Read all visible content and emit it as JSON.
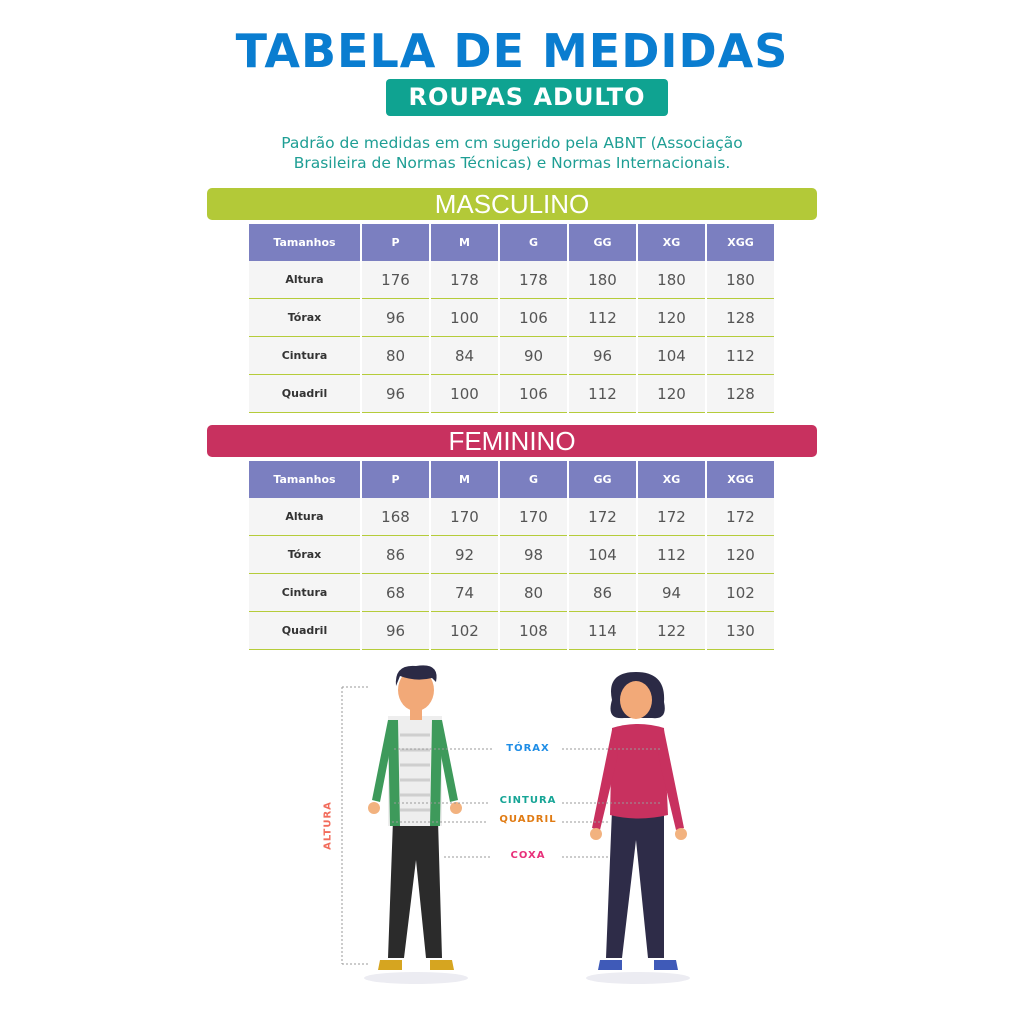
{
  "title": "TABELA DE MEDIDAS",
  "subtitle": "ROUPAS ADULTO",
  "description": [
    "Padrão de medidas em cm sugerido pela ABNT (Associação",
    "Brasileira de Normas Técnicas) e Normas Internacionais."
  ],
  "colors": {
    "title": "#0a7dd0",
    "subtitle_bg": "#0fa391",
    "masculino": "#b3c938",
    "feminino": "#c8315f",
    "table_header": "#7b7fc0"
  },
  "masculino": {
    "label": "MASCULINO",
    "headers": [
      "Tamanhos",
      "P",
      "M",
      "G",
      "GG",
      "XG",
      "XGG"
    ],
    "rows": [
      {
        "label": "Altura",
        "values": [
          "176",
          "178",
          "178",
          "180",
          "180",
          "180"
        ]
      },
      {
        "label": "Tórax",
        "values": [
          "96",
          "100",
          "106",
          "112",
          "120",
          "128"
        ]
      },
      {
        "label": "Cintura",
        "values": [
          "80",
          "84",
          "90",
          "96",
          "104",
          "112"
        ]
      },
      {
        "label": "Quadril",
        "values": [
          "96",
          "100",
          "106",
          "112",
          "120",
          "128"
        ]
      }
    ]
  },
  "feminino": {
    "label": "FEMININO",
    "headers": [
      "Tamanhos",
      "P",
      "M",
      "G",
      "GG",
      "XG",
      "XGG"
    ],
    "rows": [
      {
        "label": "Altura",
        "values": [
          "168",
          "170",
          "170",
          "172",
          "172",
          "172"
        ]
      },
      {
        "label": "Tórax",
        "values": [
          "86",
          "92",
          "98",
          "104",
          "112",
          "120"
        ]
      },
      {
        "label": "Cintura",
        "values": [
          "68",
          "74",
          "80",
          "86",
          "94",
          "102"
        ]
      },
      {
        "label": "Quadril",
        "values": [
          "96",
          "102",
          "108",
          "114",
          "122",
          "130"
        ]
      }
    ]
  },
  "measures": {
    "altura": "ALTURA",
    "torax": "TÓRAX",
    "cintura": "CINTURA",
    "quadril": "QUADRIL",
    "coxa": "COXA"
  }
}
